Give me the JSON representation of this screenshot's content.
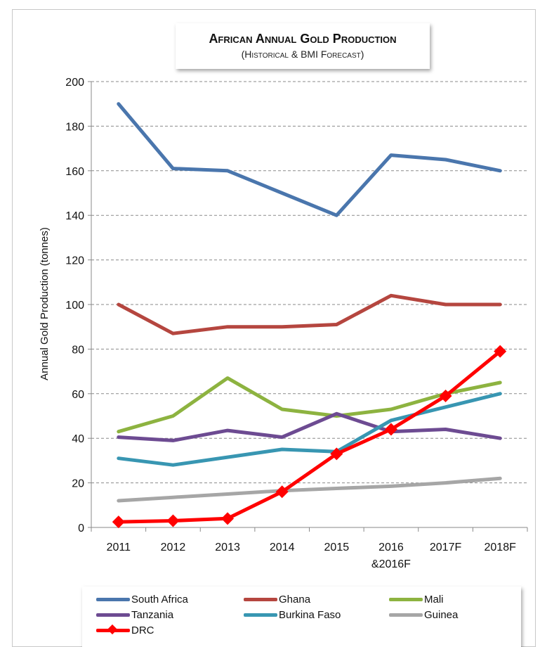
{
  "chart_data": {
    "type": "line",
    "title": "African Annual Gold Production",
    "subtitle": "(Historical & BMI Forecast)",
    "xlabel": "",
    "ylabel": "Annual Gold Production (tonnes)",
    "ylim": [
      0,
      200
    ],
    "yticks": [
      0,
      20,
      40,
      60,
      80,
      100,
      120,
      140,
      160,
      180,
      200
    ],
    "grid": true,
    "legend_position": "bottom",
    "categories": [
      "2011",
      "2012",
      "2013",
      "2014",
      "2015",
      "2016",
      "2017F",
      "2018F"
    ],
    "category_sublabels": [
      "",
      "",
      "",
      "",
      "",
      "&2016F",
      "",
      ""
    ],
    "series": [
      {
        "name": "South Africa",
        "color": "#4a76ad",
        "values": [
          190,
          161,
          160,
          150,
          140,
          167,
          165,
          160
        ]
      },
      {
        "name": "Ghana",
        "color": "#b5463f",
        "values": [
          100,
          87,
          90,
          90,
          91,
          104,
          100,
          100
        ]
      },
      {
        "name": "Mali",
        "color": "#8db340",
        "values": [
          43,
          50,
          67,
          53,
          50,
          53,
          60,
          65
        ]
      },
      {
        "name": "Tanzania",
        "color": "#6d4b92",
        "values": [
          40.5,
          39,
          43.5,
          40.5,
          51,
          43,
          44,
          40
        ]
      },
      {
        "name": "Burkina Faso",
        "color": "#3896b2",
        "values": [
          31,
          28,
          31.5,
          35,
          34,
          48,
          54,
          60
        ]
      },
      {
        "name": "Guinea",
        "color": "#a6a6a6",
        "values": [
          12,
          13.5,
          15,
          16.5,
          17.5,
          18.5,
          20,
          22
        ]
      },
      {
        "name": "DRC",
        "color": "#ff0000",
        "marker": "diamond",
        "values": [
          2.5,
          3,
          4,
          16,
          33,
          44,
          59,
          79
        ]
      }
    ]
  }
}
